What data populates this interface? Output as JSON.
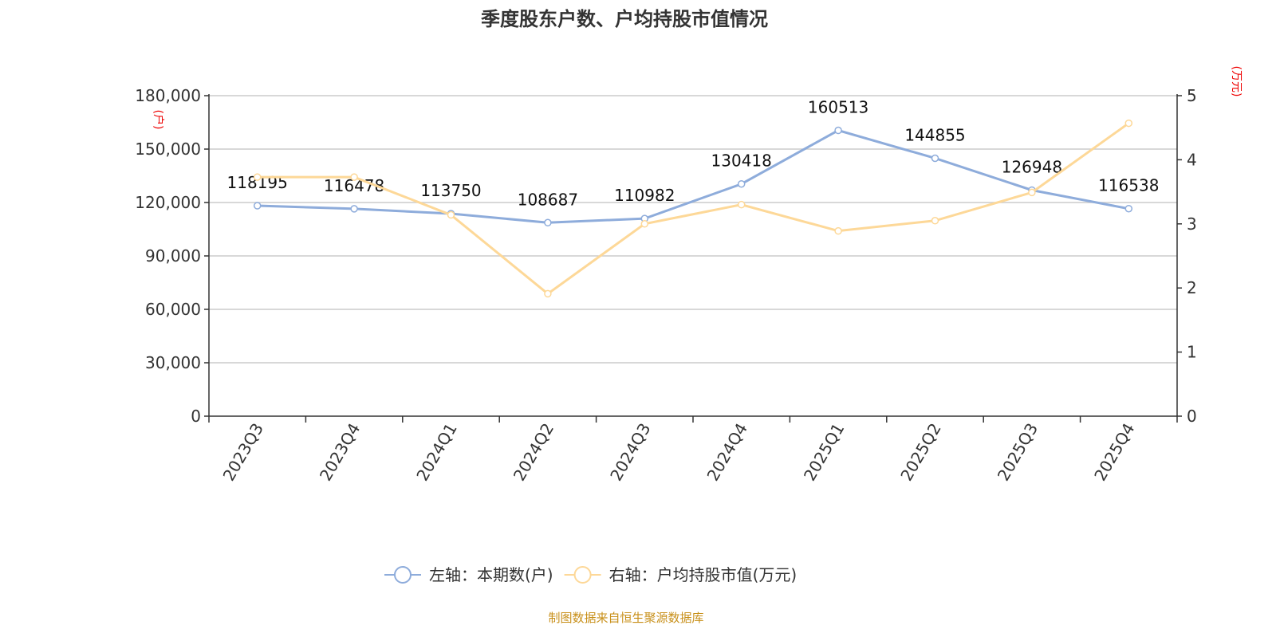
{
  "chart_data": {
    "type": "line",
    "title": "季度股东户数、户均持股市值情况",
    "categories": [
      "2023Q3",
      "2023Q4",
      "2024Q1",
      "2024Q2",
      "2024Q3",
      "2024Q4",
      "2025Q1",
      "2025Q2",
      "2025Q3",
      "2025Q4"
    ],
    "left_axis": {
      "unit_label": "(户)",
      "ylim": [
        0,
        180000
      ],
      "ticks": [
        "0",
        "30,000",
        "60,000",
        "90,000",
        "120,000",
        "150,000",
        "180,000"
      ],
      "tick_values": [
        0,
        30000,
        60000,
        90000,
        120000,
        150000,
        180000
      ]
    },
    "right_axis": {
      "unit_label": "(万元)",
      "ylim": [
        0,
        5
      ],
      "ticks": [
        "0",
        "1",
        "2",
        "3",
        "4",
        "5"
      ],
      "tick_values": [
        0,
        1,
        2,
        3,
        4,
        5
      ]
    },
    "grid": true,
    "legend_position": "bottom",
    "series": [
      {
        "name": "左轴：本期数(户)",
        "axis": "left",
        "color": "#8eacdb",
        "show_labels": true,
        "values": [
          118195,
          116478,
          113750,
          108687,
          110982,
          130418,
          160513,
          144855,
          126948,
          116538
        ]
      },
      {
        "name": "右轴：户均持股市值(万元)",
        "axis": "right",
        "color": "#fdd898",
        "show_labels": false,
        "values": [
          3.73,
          3.73,
          3.14,
          1.91,
          3.0,
          3.3,
          2.89,
          3.05,
          3.49,
          4.57
        ]
      }
    ],
    "source": "制图数据来自恒生聚源数据库"
  }
}
